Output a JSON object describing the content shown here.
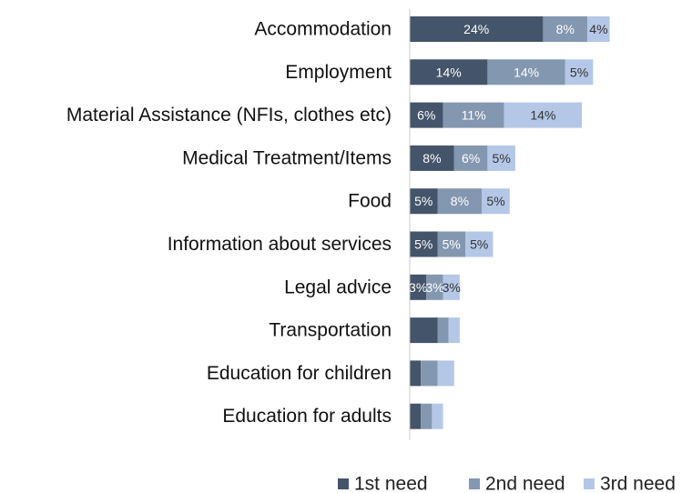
{
  "chart_data": {
    "type": "bar",
    "orientation": "horizontal",
    "stacked": true,
    "title": "",
    "xlabel": "",
    "ylabel": "",
    "categories": [
      "Accommodation",
      "Employment",
      "Material Assistance (NFIs, clothes etc)",
      "Medical Treatment/Items",
      "Food",
      "Information about services",
      "Legal advice",
      "Transportation",
      "Education for children",
      "Education for adults"
    ],
    "series": [
      {
        "name": "1st need",
        "color": "#44546a",
        "values": [
          24,
          14,
          6,
          8,
          5,
          5,
          3,
          5,
          2,
          2
        ]
      },
      {
        "name": "2nd need",
        "color": "#8497b0",
        "values": [
          8,
          14,
          11,
          6,
          8,
          5,
          3,
          2,
          3,
          2
        ]
      },
      {
        "name": "3rd need",
        "color": "#b4c7e7",
        "values": [
          4,
          5,
          14,
          5,
          5,
          5,
          3,
          2,
          3,
          2
        ]
      }
    ],
    "data_labels": [
      [
        "24%",
        "8%",
        "4%"
      ],
      [
        "14%",
        "14%",
        "5%"
      ],
      [
        "6%",
        "11%",
        "14%"
      ],
      [
        "8%",
        "6%",
        "5%"
      ],
      [
        "5%",
        "8%",
        "5%"
      ],
      [
        "5%",
        "5%",
        "5%"
      ],
      [
        "3%",
        "3%",
        "3%"
      ],
      [
        "",
        "",
        ""
      ],
      [
        "",
        "",
        ""
      ],
      [
        "",
        "",
        ""
      ]
    ],
    "xlim": [
      0,
      50
    ],
    "grid": false,
    "legend_position": "bottom-right"
  }
}
